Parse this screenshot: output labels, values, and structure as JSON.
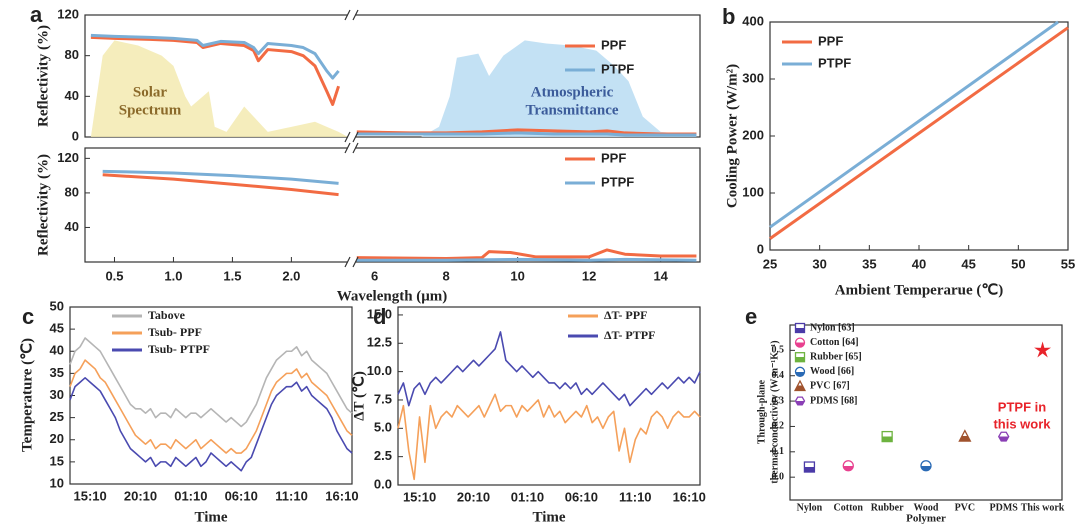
{
  "chart_data": [
    {
      "panel": "a",
      "type": "line",
      "ylabel": "Reflectivity (%)",
      "xlim": [
        0.25,
        2.48
      ],
      "x2lim": [
        5.45,
        15.1
      ],
      "ylim": [
        0,
        120
      ],
      "yticks": [
        0,
        40,
        80,
        120
      ],
      "areas": [
        {
          "label_lines": [
            "Solar",
            "Spectrum"
          ],
          "color": "#f3eab0",
          "text_color": "#8b6a2a",
          "x": [
            0.3,
            0.4,
            0.5,
            0.7,
            0.9,
            1.0,
            1.1,
            1.15,
            1.3,
            1.35,
            1.45,
            1.6,
            1.8,
            2.0,
            2.2,
            2.4,
            2.48
          ],
          "values": [
            0,
            80,
            95,
            90,
            80,
            70,
            40,
            30,
            45,
            10,
            5,
            30,
            5,
            10,
            15,
            5,
            0
          ]
        },
        {
          "label_lines": [
            "Atmospheric",
            "Transmittance"
          ],
          "color": "#b9dcf2",
          "text_color": "#3b5b9a",
          "x": [
            7.3,
            7.8,
            8.1,
            8.3,
            8.9,
            9.2,
            9.6,
            10.2,
            10.8,
            11.5,
            12.2,
            12.7,
            13.1,
            13.5,
            14,
            15
          ],
          "values": [
            0,
            10,
            40,
            78,
            82,
            60,
            80,
            95,
            92,
            90,
            85,
            70,
            55,
            20,
            5,
            2
          ]
        }
      ],
      "series": [
        {
          "name": "PPF",
          "color": "#f26b43",
          "x": [
            0.3,
            0.5,
            0.8,
            1.0,
            1.2,
            1.25,
            1.4,
            1.6,
            1.68,
            1.72,
            1.8,
            2.0,
            2.1,
            2.2,
            2.3,
            2.35,
            2.4,
            5.5,
            7,
            8,
            9,
            10,
            11,
            12,
            12.5,
            13,
            14,
            15
          ],
          "values": [
            98,
            97,
            96,
            95,
            93,
            88,
            92,
            90,
            85,
            75,
            86,
            84,
            80,
            70,
            45,
            32,
            50,
            5,
            4,
            4,
            5,
            7,
            6,
            5,
            6,
            4,
            3,
            3
          ]
        },
        {
          "name": "PTPF",
          "color": "#7aaed6",
          "x": [
            0.3,
            0.5,
            0.8,
            1.0,
            1.2,
            1.25,
            1.4,
            1.6,
            1.68,
            1.72,
            1.8,
            2.0,
            2.1,
            2.2,
            2.3,
            2.35,
            2.4,
            5.5,
            7,
            8,
            9,
            10,
            11,
            12,
            12.5,
            13,
            14,
            15
          ],
          "values": [
            100,
            99,
            98,
            97,
            95,
            90,
            94,
            93,
            88,
            82,
            92,
            90,
            88,
            82,
            65,
            58,
            65,
            3,
            3,
            3,
            3,
            4,
            3,
            3,
            3,
            2,
            2,
            2
          ]
        }
      ]
    },
    {
      "type": "line",
      "ylabel": "Reflectivity (%)",
      "xlabel": "Wavelength (μm)",
      "xlim": [
        0.25,
        2.48
      ],
      "xticks": [
        0.5,
        {
          "value": 1.0,
          "label": "1.0"
        },
        1.5,
        {
          "value": 2.0,
          "label": "2.0"
        }
      ],
      "x2lim": [
        5.45,
        15.1
      ],
      "x2ticks": [
        6,
        8,
        10,
        12,
        14
      ],
      "ylim": [
        0,
        132
      ],
      "yticks": [
        40,
        80,
        120
      ],
      "series": [
        {
          "name": "PPF",
          "color": "#f26b43",
          "x": [
            0.4,
            1.0,
            1.5,
            2.0,
            2.4,
            5.5,
            8,
            9,
            9.2,
            9.8,
            10.5,
            12,
            12.5,
            13,
            14,
            15
          ],
          "values": [
            101,
            96,
            90,
            84,
            78,
            5,
            4,
            5,
            12,
            11,
            6,
            6,
            14,
            9,
            7,
            7
          ]
        },
        {
          "name": "PTPF",
          "color": "#7aaed6",
          "x": [
            0.4,
            1.0,
            1.5,
            2.0,
            2.4,
            5.5,
            8,
            10,
            12,
            13,
            15
          ],
          "values": [
            105,
            103,
            100,
            96,
            91,
            2,
            2,
            3,
            2,
            3,
            2
          ]
        }
      ]
    },
    {
      "panel": "b",
      "type": "line",
      "ylabel": "Cooling Power (W/m²)",
      "xlabel": "Ambient Temperarue (℃)",
      "xlim": [
        25,
        55
      ],
      "xticks": [
        25,
        30,
        35,
        40,
        45,
        50,
        55
      ],
      "ylim": [
        0,
        400
      ],
      "yticks": [
        0,
        100,
        200,
        300,
        400
      ],
      "series": [
        {
          "name": "PPF",
          "color": "#f26b43",
          "x": [
            25,
            55
          ],
          "values": [
            20,
            390
          ]
        },
        {
          "name": "PTPF",
          "color": "#7aaed6",
          "x": [
            25,
            54
          ],
          "values": [
            40,
            400
          ]
        }
      ]
    },
    {
      "panel": "c",
      "type": "line",
      "ylabel": "Temperature (℃)",
      "xlabel": "Time",
      "categories": [
        null,
        null,
        null,
        null,
        "15:10",
        null,
        null,
        null,
        null,
        null,
        null,
        null,
        null,
        null,
        "20:10",
        null,
        null,
        null,
        null,
        null,
        null,
        null,
        null,
        null,
        "01:10",
        null,
        null,
        null,
        null,
        null,
        null,
        null,
        null,
        null,
        "06:10",
        null,
        null,
        null,
        null,
        null,
        null,
        null,
        null,
        null,
        "11:10",
        null,
        null,
        null,
        null,
        null,
        null,
        null,
        null,
        null,
        "16:10",
        null,
        null
      ],
      "ylim": [
        10,
        50
      ],
      "yticks": [
        10,
        15,
        20,
        25,
        30,
        35,
        40,
        45,
        50
      ],
      "series": [
        {
          "name": "Tabove",
          "color": "#b5b5b5",
          "values": [
            37,
            40,
            41,
            43,
            42,
            41,
            40,
            38,
            36,
            34,
            32,
            30,
            28,
            27,
            27,
            26,
            27,
            25,
            26,
            26,
            25,
            27,
            26,
            25,
            26,
            26,
            25,
            26,
            27,
            26,
            25,
            24,
            25,
            24,
            23,
            24,
            26,
            28,
            31,
            34,
            36,
            38,
            39,
            40,
            40,
            41,
            39,
            40,
            38,
            37,
            36,
            35,
            33,
            31,
            29,
            27,
            26
          ]
        },
        {
          "name": "Tsub- PPF",
          "color": "#f5a05a",
          "values": [
            32,
            35,
            36,
            38,
            37,
            36,
            34,
            33,
            31,
            29,
            27,
            25,
            23,
            21,
            20,
            19,
            20,
            18,
            19,
            19,
            18,
            20,
            19,
            18,
            19,
            20,
            18,
            19,
            20,
            19,
            18,
            17,
            18,
            17,
            17,
            18,
            20,
            22,
            25,
            28,
            31,
            33,
            34,
            35,
            35,
            36,
            34,
            35,
            33,
            32,
            31,
            30,
            28,
            26,
            24,
            22,
            21
          ]
        },
        {
          "name": "Tsub- PTPF",
          "color": "#4a4ab0",
          "values": [
            29,
            32,
            33,
            34,
            33,
            32,
            31,
            29,
            27,
            25,
            22,
            20,
            18,
            17,
            16,
            15,
            16,
            14,
            15,
            15,
            14,
            16,
            15,
            14,
            15,
            16,
            14,
            15,
            17,
            16,
            15,
            14,
            15,
            14,
            13,
            15,
            16,
            19,
            22,
            25,
            28,
            30,
            31,
            32,
            32,
            33,
            31,
            32,
            30,
            29,
            28,
            27,
            25,
            22,
            20,
            18,
            17
          ]
        }
      ]
    },
    {
      "panel": "d",
      "type": "line",
      "ylabel": "ΔT (℃)",
      "xlabel": "Time",
      "categories": [
        null,
        null,
        null,
        null,
        "15:10",
        null,
        null,
        null,
        null,
        null,
        null,
        null,
        null,
        null,
        "20:10",
        null,
        null,
        null,
        null,
        null,
        null,
        null,
        null,
        null,
        "01:10",
        null,
        null,
        null,
        null,
        null,
        null,
        null,
        null,
        null,
        "06:10",
        null,
        null,
        null,
        null,
        null,
        null,
        null,
        null,
        null,
        "11:10",
        null,
        null,
        null,
        null,
        null,
        null,
        null,
        null,
        null,
        "16:10",
        null,
        null
      ],
      "ylim": [
        0,
        15.7
      ],
      "yticks": [
        {
          "value": 0,
          "label": "0.0"
        },
        2.5,
        {
          "value": 5,
          "label": "5.0"
        },
        7.5,
        {
          "value": 10,
          "label": "10.0"
        },
        12.5,
        {
          "value": 15,
          "label": "15.0"
        }
      ],
      "series": [
        {
          "name": "ΔT- PPF",
          "color": "#f5a05a",
          "values": [
            5,
            7,
            3,
            0.5,
            6,
            2,
            7,
            5,
            6,
            6.5,
            6,
            7,
            6.5,
            6,
            6.5,
            7,
            6,
            7,
            8,
            6.5,
            7,
            7,
            6,
            7,
            6.5,
            7,
            7.5,
            6,
            7,
            6,
            6.5,
            5.5,
            6,
            6.5,
            6,
            7,
            5.5,
            6,
            5,
            6,
            6.5,
            3,
            5,
            2,
            4,
            5,
            4.5,
            6,
            6.5,
            6,
            5,
            6,
            6.5,
            6,
            6,
            6.5,
            6
          ]
        },
        {
          "name": "ΔT- PTPF",
          "color": "#4a4ab0",
          "values": [
            8,
            9,
            7,
            8.5,
            9,
            8,
            9,
            9.5,
            9,
            9.5,
            10,
            10.5,
            10,
            10.5,
            11,
            10.5,
            11,
            11.5,
            12,
            13.5,
            11,
            10.5,
            10,
            10.5,
            10,
            9.5,
            10,
            9.5,
            9,
            9,
            8.5,
            9,
            8.5,
            9,
            8,
            8.5,
            8,
            8.5,
            9,
            8.5,
            8,
            7.5,
            8,
            7,
            7.5,
            8,
            8.5,
            8,
            8.5,
            9,
            8.5,
            9,
            9.5,
            9,
            9.5,
            9,
            10
          ]
        }
      ]
    },
    {
      "panel": "e",
      "type": "scatter",
      "ylabel_lines": [
        "Through-plane",
        "thermal conductivity (W m⁻¹K⁻¹)"
      ],
      "xlabel": "Polymer",
      "categories": [
        "Nylon",
        "Cotton",
        "Rubber",
        "Wood",
        "PVC",
        "PDMS",
        "This work"
      ],
      "values": [
        0.04,
        0.045,
        0.16,
        0.045,
        0.16,
        0.16,
        0.5
      ],
      "colors": [
        "#4b3ba8",
        "#e8408f",
        "#6db33f",
        "#2a6ab5",
        "#a0522d",
        "#8a3fb5",
        "#e8232a"
      ],
      "markers": [
        "square",
        "circle",
        "square",
        "circle",
        "triangle",
        "hexagon",
        "star"
      ],
      "legend_entries": [
        "Nylon [63]",
        "Cotton [64]",
        "Rubber [65]",
        "Wood [66]",
        "PVC [67]",
        "PDMS [68]"
      ],
      "annotation_lines": [
        "PTPF in",
        "this work"
      ],
      "ylim": [
        -0.09,
        0.6
      ],
      "yticks": [
        {
          "value": 0,
          "label": "0.0"
        },
        0.1,
        0.2,
        0.3,
        0.4,
        0.5
      ]
    }
  ]
}
